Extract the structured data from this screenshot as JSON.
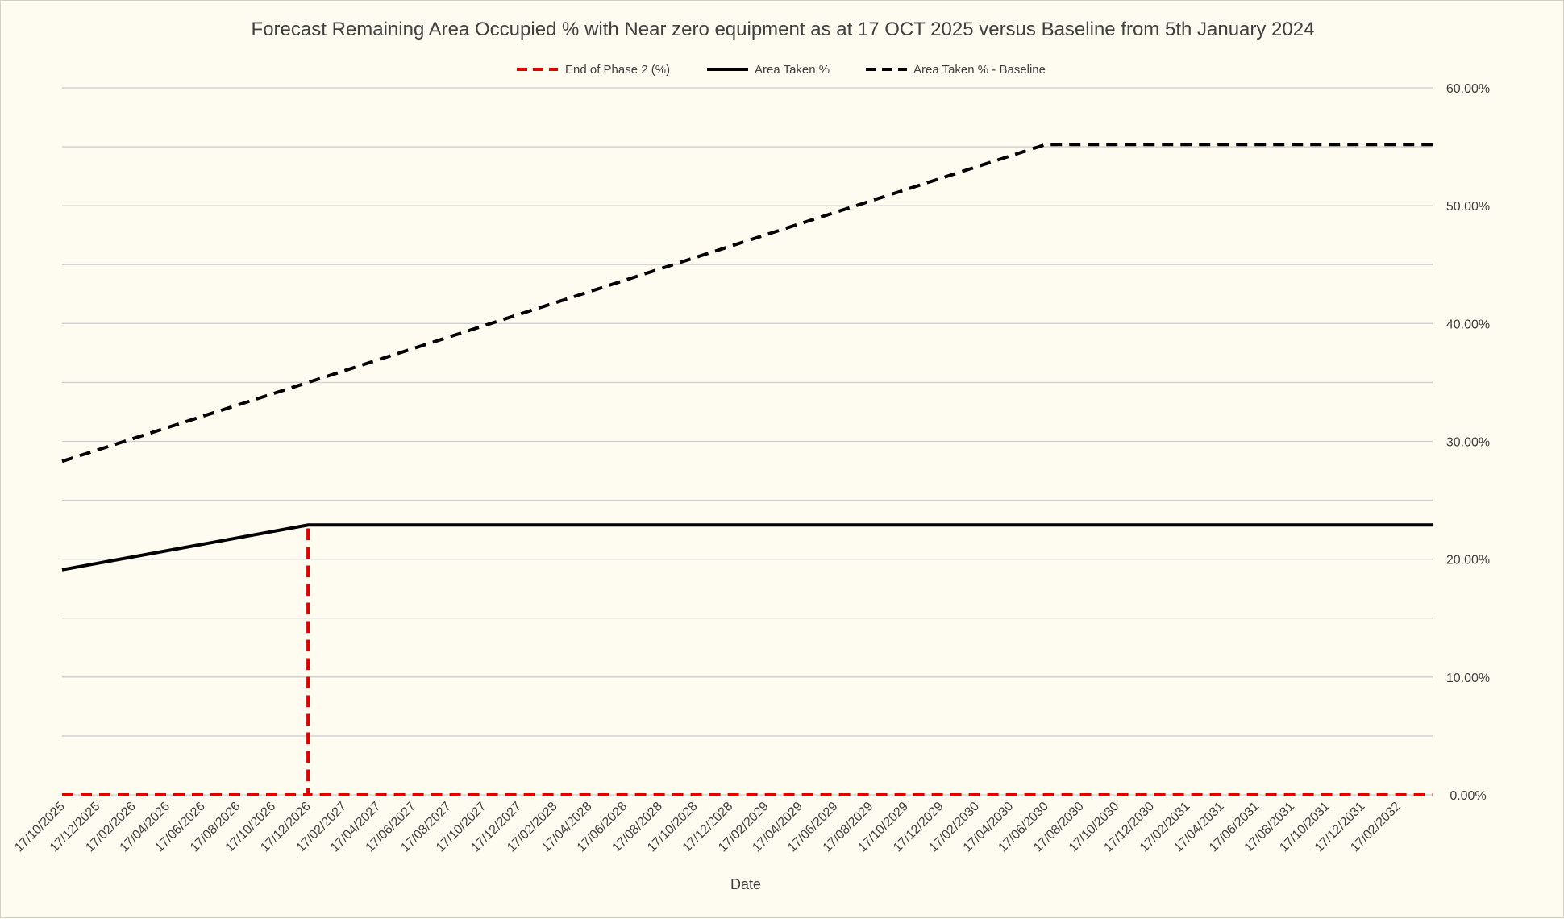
{
  "chart_data": {
    "type": "line",
    "title": "Forecast Remaining Area Occupied % with Near zero equipment as at 17 OCT 2025 versus Baseline from 5th January 2024",
    "xlabel": "Date",
    "ylabel": "",
    "ylim": [
      0,
      60
    ],
    "y_axis_position": "right",
    "y_ticks": [
      "0.00%",
      "10.00%",
      "20.00%",
      "30.00%",
      "40.00%",
      "50.00%",
      "60.00%"
    ],
    "y_gridlines_every": 5,
    "x_ticks": [
      "17/10/2025",
      "17/12/2025",
      "17/02/2026",
      "17/04/2026",
      "17/06/2026",
      "17/08/2026",
      "17/10/2026",
      "17/12/2026",
      "17/02/2027",
      "17/04/2027",
      "17/06/2027",
      "17/08/2027",
      "17/10/2027",
      "17/12/2027",
      "17/02/2028",
      "17/04/2028",
      "17/06/2028",
      "17/08/2028",
      "17/10/2028",
      "17/12/2028",
      "17/02/2029",
      "17/04/2029",
      "17/06/2029",
      "17/08/2029",
      "17/10/2029",
      "17/12/2029",
      "17/02/2030",
      "17/04/2030",
      "17/06/2030",
      "17/08/2030",
      "17/10/2030",
      "17/12/2030",
      "17/02/2031",
      "17/04/2031",
      "17/06/2031",
      "17/08/2031",
      "17/10/2031",
      "17/12/2031",
      "17/02/2032"
    ],
    "x_range": [
      "17/10/2025",
      "17/04/2032"
    ],
    "grid": true,
    "legend_position": "top",
    "series": [
      {
        "name": "End of Phase 2 (%)",
        "color": "#e00000",
        "style": "dashed",
        "points": [
          [
            "17/10/2025",
            0
          ],
          [
            "17/12/2026",
            0
          ],
          [
            "17/12/2026",
            22.9
          ],
          [
            "17/12/2026",
            0
          ],
          [
            "17/04/2032",
            0
          ]
        ]
      },
      {
        "name": "Area Taken %",
        "color": "#000000",
        "style": "solid",
        "points": [
          [
            "17/10/2025",
            19.1
          ],
          [
            "17/12/2026",
            22.9
          ],
          [
            "17/04/2032",
            22.9
          ]
        ]
      },
      {
        "name": "Area Taken % - Baseline",
        "color": "#000000",
        "style": "dashed",
        "points": [
          [
            "17/10/2025",
            28.3
          ],
          [
            "17/12/2026",
            35.0
          ],
          [
            "17/06/2030",
            55.2
          ],
          [
            "17/04/2032",
            55.2
          ]
        ]
      }
    ]
  }
}
